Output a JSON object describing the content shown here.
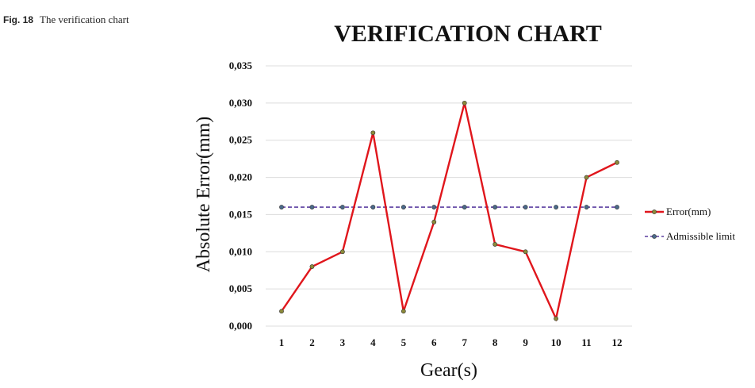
{
  "caption": {
    "label": "Fig. 18",
    "text": "The verification chart"
  },
  "chart_data": {
    "type": "line",
    "title": "VERIFICATION CHART",
    "xlabel": "Gear(s)",
    "ylabel": "Absolute Error(mm)",
    "categories": [
      "1",
      "2",
      "3",
      "4",
      "5",
      "6",
      "7",
      "8",
      "9",
      "10",
      "11",
      "12"
    ],
    "ylim": [
      0,
      0.035
    ],
    "yticks": [
      0,
      0.005,
      0.01,
      0.015,
      0.02,
      0.025,
      0.03,
      0.035
    ],
    "ytick_labels": [
      "0,000",
      "0,005",
      "0,010",
      "0,015",
      "0,020",
      "0,025",
      "0,030",
      "0,035"
    ],
    "grid": true,
    "legend_position": "right",
    "series": [
      {
        "name": "Error(mm)",
        "color": "#e0161c",
        "marker_color": "#8c8a3a",
        "dashed": false,
        "values": [
          0.002,
          0.008,
          0.01,
          0.026,
          0.002,
          0.014,
          0.03,
          0.011,
          0.01,
          0.001,
          0.02,
          0.022
        ]
      },
      {
        "name": "Admissible limit",
        "color": "#5b3fa0",
        "marker_color": "#4a6a8a",
        "dashed": true,
        "values": [
          0.016,
          0.016,
          0.016,
          0.016,
          0.016,
          0.016,
          0.016,
          0.016,
          0.016,
          0.016,
          0.016,
          0.016
        ]
      }
    ]
  }
}
